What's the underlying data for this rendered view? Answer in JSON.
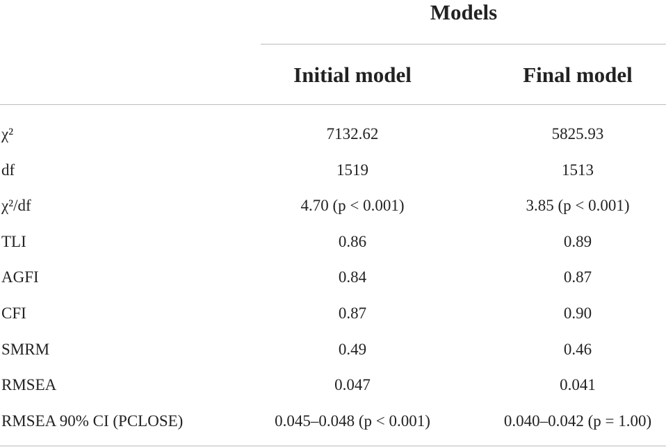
{
  "header": {
    "title": "Models",
    "columns": [
      "Initial model",
      "Final model"
    ]
  },
  "table": {
    "rows": [
      [
        "χ²",
        "7132.62",
        "5825.93"
      ],
      [
        "df",
        "1519",
        "1513"
      ],
      [
        "χ²/df",
        "4.70 (p < 0.001)",
        "3.85 (p < 0.001)"
      ],
      [
        "TLI",
        "0.86",
        "0.89"
      ],
      [
        "AGFI",
        "0.84",
        "0.87"
      ],
      [
        "CFI",
        "0.87",
        "0.90"
      ],
      [
        "SMRM",
        "0.49",
        "0.46"
      ],
      [
        "RMSEA",
        "0.047",
        "0.041"
      ],
      [
        "RMSEA 90% CI (PCLOSE)",
        "0.045–0.048 (p < 0.001)",
        "0.040–0.042 (p = 1.00)"
      ]
    ]
  }
}
